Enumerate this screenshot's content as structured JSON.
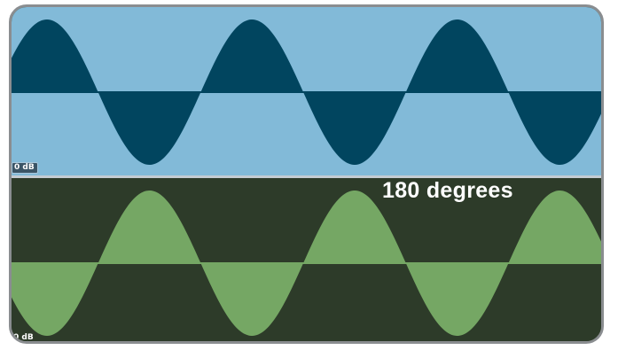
{
  "tracks": [
    {
      "id": "top",
      "gain_label": "0 dB",
      "phase_offset_degrees": 0,
      "cycles_visible": 2.9,
      "colors": {
        "background": "#82bad8",
        "fill": "#01455f",
        "baseline": "#01455f"
      }
    },
    {
      "id": "bottom",
      "gain_label": "0 dB",
      "phase_offset_degrees": 180,
      "cycles_visible": 2.9,
      "colors": {
        "background": "#2d3b29",
        "fill": "#75a764",
        "baseline": "#75a764"
      }
    }
  ],
  "annotation": {
    "text": "180 degrees"
  },
  "icons": {
    "top_track_icon": "phase-icon"
  }
}
